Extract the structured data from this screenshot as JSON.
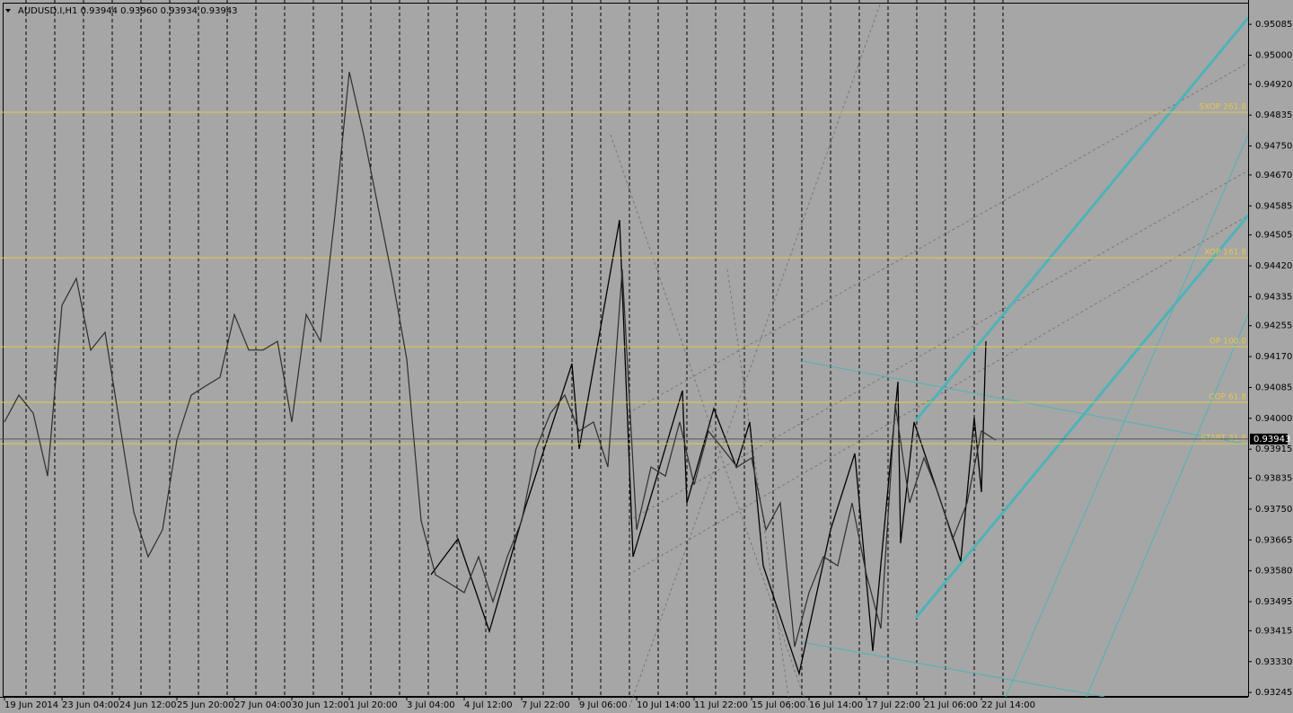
{
  "chart_data": {
    "type": "line",
    "title": "AUDUSD.I,H1  0.93944 0.93960 0.93934 0.93943",
    "categories": [
      "19 Jun 2014",
      null,
      null,
      null,
      "23 Jun 04:00",
      null,
      null,
      null,
      "24 Jun 12:00",
      null,
      null,
      null,
      "25 Jun 20:00",
      null,
      null,
      null,
      "27 Jun 04:00",
      null,
      null,
      null,
      "30 Jun 12:00",
      null,
      null,
      null,
      "1 Jul 20:00",
      null,
      null,
      null,
      "3 Jul 04:00",
      null,
      null,
      null,
      "4 Jul 12:00",
      null,
      null,
      null,
      "7 Jul 22:00",
      null,
      null,
      null,
      "9 Jul 06:00",
      null,
      null,
      null,
      "10 Jul 14:00",
      null,
      null,
      null,
      "11 Jul 22:00",
      null,
      null,
      null,
      "15 Jul 06:00",
      null,
      null,
      null,
      "16 Jul 14:00",
      null,
      null,
      null,
      "17 Jul 22:00",
      null,
      null,
      null,
      "21 Jul 06:00",
      null,
      null,
      null,
      "22 Jul 14:00",
      null
    ],
    "values": [
      0.9399,
      0.94064,
      0.94014,
      0.93841,
      0.94311,
      0.94385,
      0.94188,
      0.94237,
      0.9399,
      0.93742,
      0.93619,
      0.93693,
      0.9394,
      0.94064,
      0.94089,
      0.94113,
      0.94286,
      0.94188,
      0.94188,
      0.94212,
      0.9399,
      0.94286,
      0.94212,
      0.94559,
      0.94954,
      0.94781,
      0.94583,
      0.94385,
      0.94163,
      0.93718,
      0.93569,
      0.93545,
      0.9352,
      0.93619,
      0.93495,
      0.93619,
      0.93718,
      0.93916,
      0.94014,
      0.94064,
      0.93965,
      0.9399,
      0.93866,
      0.9441,
      0.93693,
      0.93866,
      0.93841,
      0.9399,
      0.93817,
      0.93965,
      0.93916,
      0.93866,
      0.93891,
      0.93693,
      0.93767,
      0.93371,
      0.9352,
      0.93619,
      0.93594,
      0.93767,
      0.93569,
      0.93421,
      0.94039,
      0.93767,
      0.93891,
      0.93792,
      0.93668,
      0.93767,
      0.93965,
      0.9394
    ],
    "color": "#2e2e2e",
    "ylim": [
      0.93233,
      0.95152
    ],
    "yticks": [
      0.95085,
      {
        "value": 0.95,
        "label": "0.95000"
      },
      {
        "value": 0.9492,
        "label": "0.94920"
      },
      0.94835,
      {
        "value": 0.9475,
        "label": "0.94750"
      },
      {
        "value": 0.9467,
        "label": "0.94670"
      },
      0.94585,
      0.94505,
      {
        "value": 0.9442,
        "label": "0.94420"
      },
      0.94335,
      0.94255,
      {
        "value": 0.9417,
        "label": "0.94170"
      },
      0.94085,
      {
        "value": 0.94,
        "label": "0.94000"
      },
      0.93915,
      0.93835,
      {
        "value": 0.9375,
        "label": "0.93750"
      },
      0.93665,
      {
        "value": 0.9358,
        "label": "0.93580"
      },
      0.93495,
      0.93415,
      {
        "value": 0.9333,
        "label": "0.93330"
      },
      0.93245
    ],
    "levels": [
      {
        "label": "SXOP 261.8",
        "value": 0.94843
      },
      {
        "label": "XOP 161.8",
        "value": 0.94442
      },
      {
        "label": "OP 100.0",
        "value": 0.94197
      },
      {
        "label": "COP 61.8",
        "value": 0.94044
      },
      {
        "label": "START 31.8",
        "value": 0.9393
      }
    ],
    "level_color": "#e6c84a",
    "last_price": 0.93943,
    "grid": true
  }
}
